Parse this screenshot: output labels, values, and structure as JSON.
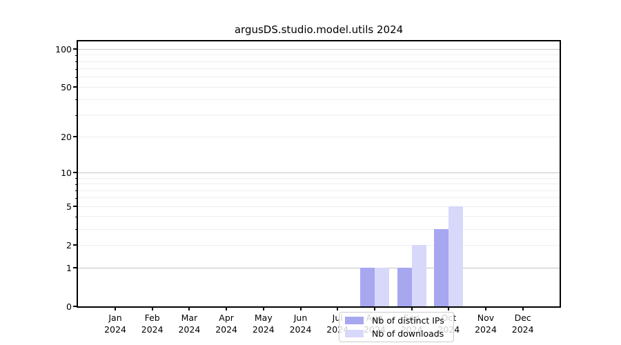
{
  "chart_data": {
    "type": "bar",
    "title": "argusDS.studio.model.utils 2024",
    "categories": [
      "Jan 2024",
      "Feb 2024",
      "Mar 2024",
      "Apr 2024",
      "May 2024",
      "Jun 2024",
      "Jul 2024",
      "Aug 2024",
      "Sep 2024",
      "Oct 2024",
      "Nov 2024",
      "Dec 2024"
    ],
    "months": [
      "Jan",
      "Feb",
      "Mar",
      "Apr",
      "May",
      "Jun",
      "Jul",
      "Aug",
      "Sep",
      "Oct",
      "Nov",
      "Dec"
    ],
    "year": "2024",
    "series": [
      {
        "name": "Nb of distinct IPs",
        "color": "#a7a7f0",
        "values": [
          0,
          0,
          0,
          0,
          0,
          0,
          0,
          1,
          1,
          3,
          0,
          0
        ]
      },
      {
        "name": "Nb of downloads",
        "color": "#d8d8fa",
        "values": [
          0,
          0,
          0,
          0,
          0,
          0,
          0,
          1,
          2,
          5,
          0,
          0
        ]
      }
    ],
    "yscale": "log1p",
    "ylim": [
      0,
      115
    ],
    "yticks": [
      0,
      1,
      2,
      5,
      10,
      20,
      50,
      100
    ],
    "minor_yticks": [
      3,
      4,
      6,
      7,
      8,
      9,
      30,
      40,
      60,
      70,
      80,
      90
    ],
    "major_gridline_ticks": [
      1,
      10,
      100
    ],
    "grid": "horizontal",
    "legend_position": "lower-center-left",
    "colors": {
      "distinct_ips": "#a7a7f0",
      "downloads": "#d8d8fa",
      "major_grid": "#c3c3c3",
      "minor_grid": "#ededed",
      "axis": "#000000"
    }
  }
}
